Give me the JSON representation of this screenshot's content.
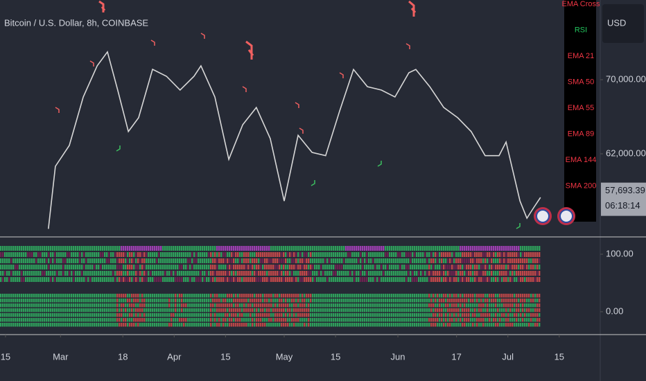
{
  "chart_data": [
    {
      "type": "line",
      "title": "Bitcoin / U.S. Dollar, 8h, COINBASE",
      "y_unit": "USD",
      "x": [
        11.7,
        13.6,
        17.4,
        21.2,
        25,
        27.8,
        30.6,
        33.5,
        36.3,
        40.1,
        43.9,
        47.6,
        51.4,
        53.3,
        57.1,
        60.9,
        64.7,
        68.4,
        72.2,
        76,
        79.8,
        83.6,
        87.3,
        91.1,
        94.9,
        98.7,
        102.5,
        106.2,
        110,
        111.9,
        115.7,
        119.5,
        123.3,
        127,
        130.8,
        134.6,
        136.5,
        140.3,
        142.2,
        144,
        145.9
      ],
      "values": [
        53900,
        60650,
        62900,
        68130,
        71500,
        73000,
        68880,
        64400,
        65900,
        71120,
        70370,
        68880,
        70370,
        71500,
        68130,
        61400,
        65140,
        67000,
        63650,
        56900,
        64000,
        62150,
        61800,
        66600,
        71100,
        69250,
        68880,
        68130,
        70750,
        71100,
        69250,
        67000,
        65900,
        64400,
        61800,
        61800,
        63270,
        56900,
        55050,
        56170,
        57290
      ],
      "color": "#d8d8d8",
      "xlim": [
        -1.5,
        162
      ],
      "ylim": [
        53030,
        78600
      ],
      "xticks": [
        {
          "value": 0,
          "label": "15"
        },
        {
          "value": 15,
          "label": "Mar"
        },
        {
          "value": 32,
          "label": "18"
        },
        {
          "value": 46,
          "label": "Apr"
        },
        {
          "value": 60,
          "label": "15"
        },
        {
          "value": 76,
          "label": "May"
        },
        {
          "value": 90,
          "label": "15"
        },
        {
          "value": 107,
          "label": "Jun"
        },
        {
          "value": 123,
          "label": "17"
        },
        {
          "value": 137,
          "label": "Jul"
        },
        {
          "value": 151,
          "label": "15"
        }
      ],
      "yticks": [
        {
          "value": 70000,
          "label": "70,000.00"
        },
        {
          "value": 62000,
          "label": "62,000.00"
        }
      ],
      "last_price": {
        "value": 57693.39,
        "label": "57,693.39"
      },
      "countdown": "06:18:14",
      "legend": [
        {
          "name": "EMA Cross",
          "color": "#f23645"
        },
        {
          "name": "RSI",
          "color": "#22c55e"
        },
        {
          "name": "EMA 21",
          "color": "#f23645"
        },
        {
          "name": "SMA 50",
          "color": "#f23645"
        },
        {
          "name": "EMA 55",
          "color": "#f23645"
        },
        {
          "name": "EMA 89",
          "color": "#f23645"
        },
        {
          "name": "EMA 144",
          "color": "#f23645"
        },
        {
          "name": "SMA 200",
          "color": "#f23645"
        }
      ]
    },
    {
      "type": "heatmap",
      "ylim": [
        -39.8,
        128.9
      ],
      "yticks": [
        {
          "value": 100,
          "label": "100.00"
        },
        {
          "value": 0,
          "label": "0.00"
        }
      ]
    }
  ]
}
